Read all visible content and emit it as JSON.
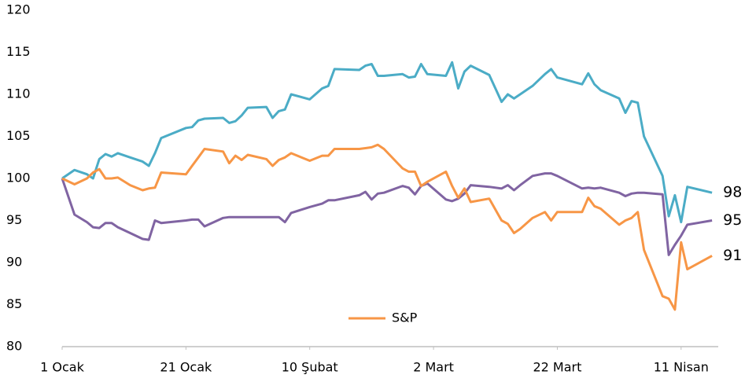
{
  "chart_data": {
    "type": "line",
    "x": [
      0,
      2,
      4,
      5,
      6,
      7,
      8,
      9,
      11,
      13,
      14,
      15,
      16,
      20,
      21,
      22,
      23,
      26,
      27,
      28,
      29,
      30,
      33,
      34,
      35,
      36,
      37,
      40,
      42,
      43,
      44,
      48,
      49,
      50,
      51,
      52,
      55,
      56,
      57,
      58,
      59,
      62,
      63,
      64,
      65,
      66,
      69,
      71,
      72,
      73,
      74,
      76,
      78,
      79,
      80,
      84,
      85,
      86,
      87,
      90,
      91,
      92,
      93,
      94,
      97,
      98,
      99,
      100,
      101,
      105
    ],
    "xlim": [
      0,
      106
    ],
    "xticks": [
      {
        "value": 0,
        "label": "1 Ocak"
      },
      {
        "value": 20,
        "label": "21 Ocak"
      },
      {
        "value": 40,
        "label": "10 Şubat"
      },
      {
        "value": 60,
        "label": "2 Mart"
      },
      {
        "value": 80,
        "label": "22 Mart"
      },
      {
        "value": 100,
        "label": "11 Nisan"
      }
    ],
    "ylim": [
      80,
      120
    ],
    "yticks": [
      80,
      85,
      90,
      95,
      100,
      105,
      110,
      115,
      120
    ],
    "grid": false,
    "legend": "bottom",
    "series": [
      {
        "color": "#4bacc6",
        "values": [
          100,
          101,
          100.5,
          100,
          102.3,
          102.9,
          102.6,
          103,
          102.5,
          102,
          101.5,
          103,
          104.8,
          106,
          106.1,
          106.9,
          107.1,
          107.2,
          106.6,
          106.8,
          107.5,
          108.4,
          108.5,
          107.2,
          108,
          108.2,
          110,
          109.4,
          110.7,
          111,
          113,
          112.9,
          113.4,
          113.6,
          112.2,
          112.2,
          112.4,
          112,
          112.1,
          113.6,
          112.4,
          112.2,
          113.8,
          110.7,
          112.7,
          113.4,
          112.3,
          109.1,
          110,
          109.5,
          110,
          111,
          112.4,
          113,
          112,
          111.2,
          112.5,
          111.2,
          110.5,
          109.5,
          107.8,
          109.2,
          109,
          105,
          100.3,
          95.5,
          98,
          94.8,
          99,
          98.3
        ],
        "value_labels": [
          null,
          null,
          null,
          null,
          null,
          null,
          null,
          null,
          null,
          null,
          null,
          null,
          null,
          null,
          null,
          null,
          null,
          null,
          null,
          null,
          null,
          null,
          null,
          null,
          null,
          null,
          null,
          null,
          null,
          null,
          null,
          null,
          null,
          null,
          null,
          null,
          null,
          null,
          null,
          null,
          null,
          null,
          null,
          null,
          null,
          null,
          null,
          null,
          null,
          null,
          null,
          null,
          null,
          null,
          null,
          null,
          null,
          null,
          null,
          null,
          null,
          null,
          null,
          null,
          null,
          null,
          null,
          null,
          null,
          "98"
        ]
      },
      {
        "color": "#8064a2",
        "values": [
          100,
          95.7,
          94.8,
          94.2,
          94.1,
          94.7,
          94.7,
          94.2,
          93.5,
          92.8,
          92.7,
          95,
          94.7,
          95,
          95.1,
          95.1,
          94.3,
          95.3,
          95.4,
          95.4,
          95.4,
          95.4,
          95.4,
          95.4,
          95.4,
          94.8,
          95.9,
          96.6,
          97,
          97.4,
          97.4,
          98,
          98.4,
          97.5,
          98.2,
          98.3,
          99.1,
          98.9,
          98.1,
          99.1,
          99.4,
          97.5,
          97.3,
          97.6,
          98.2,
          99.2,
          99,
          98.8,
          99.2,
          98.6,
          99.2,
          100.3,
          100.6,
          100.6,
          100.3,
          98.8,
          98.9,
          98.8,
          98.9,
          98.3,
          97.9,
          98.2,
          98.3,
          98.3,
          98.1,
          90.9,
          92.1,
          93.2,
          94.5,
          95
        ],
        "value_labels": [
          null,
          null,
          null,
          null,
          null,
          null,
          null,
          null,
          null,
          null,
          null,
          null,
          null,
          null,
          null,
          null,
          null,
          null,
          null,
          null,
          null,
          null,
          null,
          null,
          null,
          null,
          null,
          null,
          null,
          null,
          null,
          null,
          null,
          null,
          null,
          null,
          null,
          null,
          null,
          null,
          null,
          null,
          null,
          null,
          null,
          null,
          null,
          null,
          null,
          null,
          null,
          null,
          null,
          null,
          null,
          null,
          null,
          null,
          null,
          null,
          null,
          null,
          null,
          null,
          null,
          null,
          null,
          null,
          null,
          "95"
        ]
      },
      {
        "name": "S&P",
        "color": "#f79646",
        "values": [
          100,
          99.3,
          100,
          100.7,
          101.1,
          100,
          100,
          100.1,
          99.2,
          98.6,
          98.8,
          98.9,
          100.7,
          100.5,
          101.5,
          102.5,
          103.5,
          103.2,
          101.8,
          102.7,
          102.2,
          102.8,
          102.3,
          101.5,
          102.2,
          102.5,
          103,
          102.1,
          102.7,
          102.7,
          103.5,
          103.5,
          103.6,
          103.7,
          104,
          103.5,
          101.2,
          100.8,
          100.8,
          99.1,
          99.6,
          100.8,
          99.1,
          97.7,
          98.8,
          97.2,
          97.6,
          95,
          94.6,
          93.5,
          94,
          95.3,
          96,
          95,
          96,
          96,
          97.7,
          96.7,
          96.4,
          94.5,
          95,
          95.3,
          96,
          91.5,
          86,
          85.7,
          84.4,
          92.4,
          89.2,
          90.8
        ],
        "value_labels": [
          null,
          null,
          null,
          null,
          null,
          null,
          null,
          null,
          null,
          null,
          null,
          null,
          null,
          null,
          null,
          null,
          null,
          null,
          null,
          null,
          null,
          null,
          null,
          null,
          null,
          null,
          null,
          null,
          null,
          null,
          null,
          null,
          null,
          null,
          null,
          null,
          null,
          null,
          null,
          null,
          null,
          null,
          null,
          null,
          null,
          null,
          null,
          null,
          null,
          null,
          null,
          null,
          null,
          null,
          null,
          null,
          null,
          null,
          null,
          null,
          null,
          null,
          null,
          null,
          null,
          null,
          null,
          null,
          null,
          "91"
        ]
      }
    ]
  }
}
